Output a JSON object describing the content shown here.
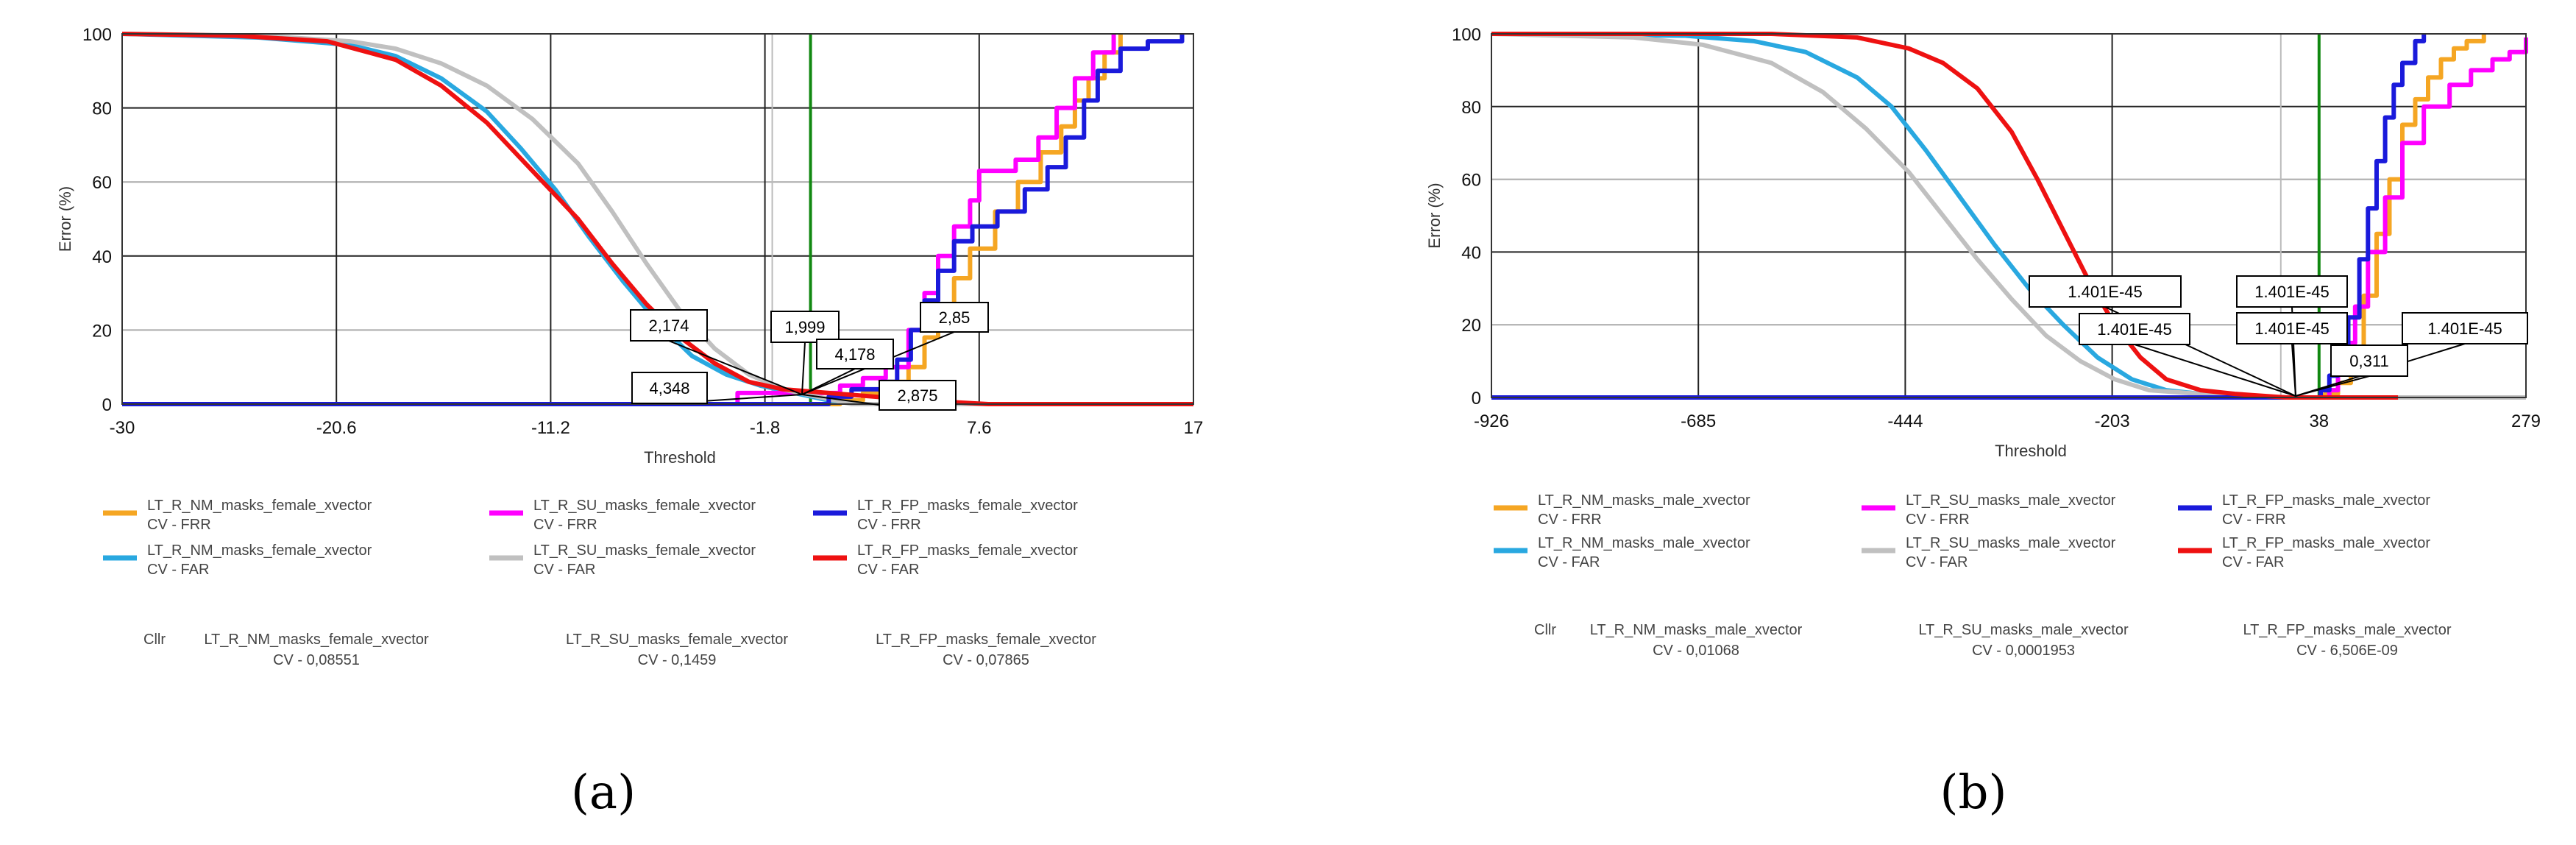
{
  "chart_data": [
    {
      "id": "a",
      "type": "line",
      "caption": "(a)",
      "xlabel": "Threshold",
      "ylabel": "Error (%)",
      "xlim": [
        -30,
        17
      ],
      "ylim": [
        0,
        100
      ],
      "xticks": [
        "-30",
        "-20.6",
        "-11.2",
        "-1.8",
        "7.6",
        "17"
      ],
      "yticks": [
        "0",
        "20",
        "40",
        "60",
        "80",
        "100"
      ],
      "vline_x": 0.2,
      "series": [
        {
          "name": "LT_R_NM_masks_female_xvector CV - FRR",
          "color": "#f5a623",
          "step": true,
          "points": [
            [
              -30,
              0
            ],
            [
              0.3,
              0
            ],
            [
              1.5,
              1
            ],
            [
              2.5,
              3
            ],
            [
              3.5,
              6
            ],
            [
              4.5,
              10
            ],
            [
              5.2,
              18
            ],
            [
              5.8,
              26
            ],
            [
              6.5,
              34
            ],
            [
              7.2,
              42
            ],
            [
              8.3,
              52
            ],
            [
              9.3,
              60
            ],
            [
              10.3,
              68
            ],
            [
              11.2,
              75
            ],
            [
              11.8,
              82
            ],
            [
              12.4,
              88
            ],
            [
              13.1,
              95
            ],
            [
              13.8,
              100
            ]
          ]
        },
        {
          "name": "LT_R_NM_masks_female_xvector CV - FAR",
          "color": "#29a8e0",
          "step": false,
          "points": [
            [
              -30,
              100
            ],
            [
              -24,
              99
            ],
            [
              -20,
              97
            ],
            [
              -18,
              94
            ],
            [
              -16,
              88
            ],
            [
              -14,
              79
            ],
            [
              -12.5,
              69
            ],
            [
              -11,
              58
            ],
            [
              -9.5,
              45
            ],
            [
              -8,
              33
            ],
            [
              -6.5,
              22
            ],
            [
              -5,
              13
            ],
            [
              -3.5,
              8
            ],
            [
              -2,
              5
            ],
            [
              -0.5,
              3
            ],
            [
              1,
              1
            ],
            [
              2.5,
              0
            ],
            [
              17,
              0
            ]
          ]
        },
        {
          "name": "LT_R_SU_masks_female_xvector CV - FRR",
          "color": "#ff00ff",
          "step": true,
          "points": [
            [
              -30,
              0
            ],
            [
              -3.2,
              0
            ],
            [
              -3,
              3
            ],
            [
              0,
              3
            ],
            [
              1.5,
              5
            ],
            [
              2.5,
              7
            ],
            [
              3.5,
              10
            ],
            [
              4.5,
              20
            ],
            [
              5.2,
              30
            ],
            [
              5.8,
              40
            ],
            [
              6.5,
              48
            ],
            [
              7.2,
              55
            ],
            [
              7.6,
              63
            ],
            [
              9.2,
              66
            ],
            [
              10.2,
              72
            ],
            [
              11,
              80
            ],
            [
              11.8,
              88
            ],
            [
              12.6,
              95
            ],
            [
              13.5,
              100
            ]
          ]
        },
        {
          "name": "LT_R_SU_masks_female_xvector CV - FAR",
          "color": "#c0c0c0",
          "step": false,
          "points": [
            [
              -30,
              100
            ],
            [
              -24,
              99.5
            ],
            [
              -20,
              98
            ],
            [
              -18,
              96
            ],
            [
              -16,
              92
            ],
            [
              -14,
              86
            ],
            [
              -12,
              77
            ],
            [
              -10,
              65
            ],
            [
              -8.5,
              52
            ],
            [
              -7,
              38
            ],
            [
              -5.5,
              25
            ],
            [
              -4,
              15
            ],
            [
              -2.5,
              8
            ],
            [
              -1,
              4
            ],
            [
              0.5,
              2
            ],
            [
              2,
              0
            ],
            [
              17,
              0
            ]
          ]
        },
        {
          "name": "LT_R_FP_masks_female_xvector CV - FRR",
          "color": "#1a1adb",
          "step": true,
          "points": [
            [
              -30,
              0
            ],
            [
              0.2,
              0
            ],
            [
              1,
              2
            ],
            [
              2,
              4
            ],
            [
              3.3,
              6
            ],
            [
              4,
              12
            ],
            [
              4.6,
              20
            ],
            [
              5.2,
              28
            ],
            [
              5.8,
              36
            ],
            [
              6.5,
              44
            ],
            [
              7.3,
              48
            ],
            [
              8.4,
              52
            ],
            [
              9.6,
              58
            ],
            [
              10.6,
              64
            ],
            [
              11.4,
              72
            ],
            [
              12.2,
              82
            ],
            [
              12.8,
              90
            ],
            [
              13.8,
              96
            ],
            [
              15,
              98
            ],
            [
              16.2,
              98
            ],
            [
              16.5,
              100
            ]
          ]
        },
        {
          "name": "LT_R_FP_masks_female_xvector CV - FAR",
          "color": "#ee1111",
          "step": false,
          "points": [
            [
              -30,
              100
            ],
            [
              -25,
              99.5
            ],
            [
              -21,
              98
            ],
            [
              -18,
              93
            ],
            [
              -16,
              86
            ],
            [
              -14,
              76
            ],
            [
              -12,
              63
            ],
            [
              -10,
              50
            ],
            [
              -8.5,
              38
            ],
            [
              -7,
              27
            ],
            [
              -5.5,
              18
            ],
            [
              -4,
              11
            ],
            [
              -2.5,
              6
            ],
            [
              -1,
              4
            ],
            [
              1,
              3
            ],
            [
              3,
              2
            ],
            [
              5,
              1
            ],
            [
              8,
              0
            ],
            [
              17,
              0
            ]
          ]
        }
      ],
      "annotations": [
        "2,174",
        "1,999",
        "4,348",
        "2,875",
        "2,85",
        "4,178"
      ],
      "legend": {
        "rows": [
          [
            "LT_R_NM_masks_female_xvector",
            "LT_R_SU_masks_female_xvector",
            "LT_R_FP_masks_female_xvector"
          ],
          [
            "LT_R_NM_masks_female_xvector",
            "LT_R_SU_masks_female_xvector",
            "LT_R_FP_masks_female_xvector"
          ]
        ],
        "sub": [
          "CV - FRR",
          "CV - FAR"
        ]
      },
      "cllr": {
        "label": "Cllr",
        "names": [
          "LT_R_NM_masks_female_xvector",
          "LT_R_SU_masks_female_xvector",
          "LT_R_FP_masks_female_xvector"
        ],
        "values": [
          "CV - 0,08551",
          "CV - 0,1459",
          "CV - 0,07865"
        ]
      }
    },
    {
      "id": "b",
      "type": "line",
      "caption": "(b)",
      "xlabel": "Threshold",
      "ylabel": "Error (%)",
      "xlim": [
        -926,
        279
      ],
      "ylim": [
        0,
        100
      ],
      "xticks": [
        "-926",
        "-685",
        "-444",
        "-203",
        "38",
        "279"
      ],
      "yticks": [
        "0",
        "20",
        "40",
        "60",
        "80",
        "100"
      ],
      "vline_x": 38,
      "series": [
        {
          "name": "LT_R_NM_masks_male_xvector CV - FRR",
          "color": "#f5a623",
          "step": true,
          "points": [
            [
              -926,
              0
            ],
            [
              20,
              0
            ],
            [
              45,
              1
            ],
            [
              60,
              4
            ],
            [
              75,
              12
            ],
            [
              90,
              28
            ],
            [
              105,
              45
            ],
            [
              120,
              60
            ],
            [
              135,
              75
            ],
            [
              150,
              82
            ],
            [
              165,
              88
            ],
            [
              180,
              93
            ],
            [
              195,
              96
            ],
            [
              210,
              98
            ],
            [
              230,
              100
            ]
          ]
        },
        {
          "name": "LT_R_NM_masks_male_xvector CV - FAR",
          "color": "#29a8e0",
          "step": false,
          "points": [
            [
              -926,
              100
            ],
            [
              -700,
              99.5
            ],
            [
              -620,
              98
            ],
            [
              -560,
              95
            ],
            [
              -500,
              88
            ],
            [
              -460,
              80
            ],
            [
              -420,
              68
            ],
            [
              -380,
              55
            ],
            [
              -340,
              42
            ],
            [
              -300,
              30
            ],
            [
              -260,
              20
            ],
            [
              -220,
              11
            ],
            [
              -180,
              5
            ],
            [
              -140,
              2
            ],
            [
              -100,
              1
            ],
            [
              0,
              0
            ],
            [
              279,
              0
            ]
          ]
        },
        {
          "name": "LT_R_SU_masks_male_xvector CV - FRR",
          "color": "#ff00ff",
          "step": true,
          "points": [
            [
              -926,
              0
            ],
            [
              40,
              0
            ],
            [
              50,
              2
            ],
            [
              60,
              8
            ],
            [
              70,
              15
            ],
            [
              80,
              25
            ],
            [
              95,
              40
            ],
            [
              115,
              55
            ],
            [
              135,
              70
            ],
            [
              160,
              80
            ],
            [
              190,
              86
            ],
            [
              215,
              90
            ],
            [
              240,
              93
            ],
            [
              260,
              95
            ],
            [
              279,
              99
            ]
          ]
        },
        {
          "name": "LT_R_SU_masks_male_xvector CV - FAR",
          "color": "#c0c0c0",
          "step": false,
          "points": [
            [
              -926,
              100
            ],
            [
              -760,
              99
            ],
            [
              -680,
              97
            ],
            [
              -600,
              92
            ],
            [
              -540,
              84
            ],
            [
              -490,
              74
            ],
            [
              -440,
              62
            ],
            [
              -400,
              50
            ],
            [
              -360,
              38
            ],
            [
              -320,
              27
            ],
            [
              -280,
              17
            ],
            [
              -240,
              10
            ],
            [
              -200,
              5
            ],
            [
              -160,
              2
            ],
            [
              -100,
              1
            ],
            [
              0,
              0
            ],
            [
              279,
              0
            ]
          ]
        },
        {
          "name": "LT_R_FP_masks_male_xvector CV - FRR",
          "color": "#1a1adb",
          "step": true,
          "points": [
            [
              -926,
              0
            ],
            [
              30,
              0
            ],
            [
              40,
              2
            ],
            [
              50,
              6
            ],
            [
              60,
              12
            ],
            [
              72,
              22
            ],
            [
              85,
              38
            ],
            [
              95,
              52
            ],
            [
              105,
              65
            ],
            [
              115,
              77
            ],
            [
              125,
              86
            ],
            [
              135,
              92
            ],
            [
              150,
              98
            ],
            [
              160,
              100
            ]
          ]
        },
        {
          "name": "LT_R_FP_masks_male_xvector CV - FAR",
          "color": "#ee1111",
          "step": false,
          "points": [
            [
              -926,
              100
            ],
            [
              -600,
              100
            ],
            [
              -500,
              99
            ],
            [
              -440,
              96
            ],
            [
              -400,
              92
            ],
            [
              -360,
              85
            ],
            [
              -320,
              73
            ],
            [
              -290,
              60
            ],
            [
              -260,
              46
            ],
            [
              -230,
              32
            ],
            [
              -200,
              20
            ],
            [
              -170,
              11
            ],
            [
              -140,
              5
            ],
            [
              -100,
              2
            ],
            [
              -60,
              1
            ],
            [
              0,
              0
            ],
            [
              130,
              0
            ]
          ]
        }
      ],
      "annotations": [
        "1.401E-45",
        "1.401E-45",
        "1.401E-45",
        "1.401E-45",
        "1.401E-45",
        "0,311"
      ],
      "legend": {
        "rows": [
          [
            "LT_R_NM_masks_male_xvector",
            "LT_R_SU_masks_male_xvector",
            "LT_R_FP_masks_male_xvector"
          ],
          [
            "LT_R_NM_masks_male_xvector",
            "LT_R_SU_masks_male_xvector",
            "LT_R_FP_masks_male_xvector"
          ]
        ],
        "sub": [
          "CV - FRR",
          "CV - FAR"
        ]
      },
      "cllr": {
        "label": "Cllr",
        "names": [
          "LT_R_NM_masks_male_xvector",
          "LT_R_SU_masks_male_xvector",
          "LT_R_FP_masks_male_xvector"
        ],
        "values": [
          "CV - 0,01068",
          "CV - 0,0001953",
          "CV - 6,506E-09"
        ]
      }
    }
  ]
}
